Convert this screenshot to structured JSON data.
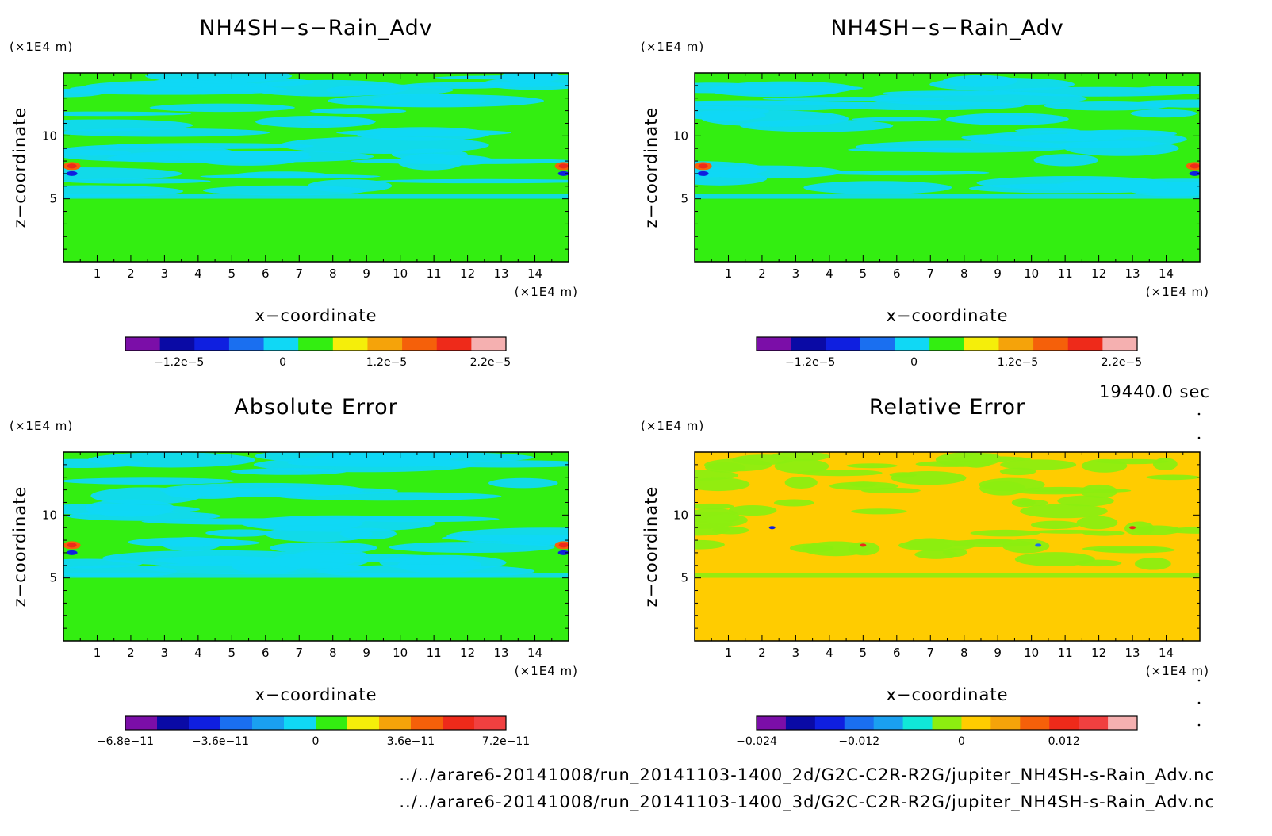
{
  "time_label": "19440.0 sec",
  "footer": {
    "line1": "../../arare6-20141008/run_20141103-1400_2d/G2C-C2R-R2G/jupiter_NH4SH-s-Rain_Adv.nc",
    "line2": "../../arare6-20141008/run_20141103-1400_3d/G2C-C2R-R2G/jupiter_NH4SH-s-Rain_Adv.nc"
  },
  "chart_data": [
    {
      "type": "heatmap",
      "title": "NH4SH−s−Rain_Adv",
      "xlabel": "x−coordinate",
      "ylabel": "z−coordinate",
      "x_unit": "(×1E4 m)",
      "y_unit": "(×1E4 m)",
      "xlim": [
        0,
        15
      ],
      "ylim": [
        0,
        15
      ],
      "x_ticks": [
        "1",
        "2",
        "3",
        "4",
        "5",
        "6",
        "7",
        "8",
        "9",
        "10",
        "11",
        "12",
        "13",
        "14"
      ],
      "y_ticks": [
        "5",
        "10"
      ],
      "background_color": "#33ee11",
      "features": "cyan (slightly negative) filaments between z=5 and z=15, strong red/blue extrema at the x boundaries near z=7.5",
      "colorbar": {
        "colors": [
          "#7b0ea8",
          "#0a0aa5",
          "#0f1fe0",
          "#1a6ff0",
          "#10d8f5",
          "#33ee11",
          "#f5ee0a",
          "#f5a30a",
          "#f5600a",
          "#ee2a1a",
          "#f5b0b0"
        ],
        "tick_labels": [
          "−1.2e−5",
          "0",
          "1.2e−5",
          "2.2e−5"
        ]
      }
    },
    {
      "type": "heatmap",
      "title": "NH4SH−s−Rain_Adv",
      "xlabel": "x−coordinate",
      "ylabel": "z−coordinate",
      "x_unit": "(×1E4 m)",
      "y_unit": "(×1E4 m)",
      "xlim": [
        0,
        15
      ],
      "ylim": [
        0,
        15
      ],
      "x_ticks": [
        "1",
        "2",
        "3",
        "4",
        "5",
        "6",
        "7",
        "8",
        "9",
        "10",
        "11",
        "12",
        "13",
        "14"
      ],
      "y_ticks": [
        "5",
        "10"
      ],
      "background_color": "#33ee11",
      "features": "nearly identical to the 2d run field",
      "colorbar": {
        "colors": [
          "#7b0ea8",
          "#0a0aa5",
          "#0f1fe0",
          "#1a6ff0",
          "#10d8f5",
          "#33ee11",
          "#f5ee0a",
          "#f5a30a",
          "#f5600a",
          "#ee2a1a",
          "#f5b0b0"
        ],
        "tick_labels": [
          "−1.2e−5",
          "0",
          "1.2e−5",
          "2.2e−5"
        ]
      }
    },
    {
      "type": "heatmap",
      "title": "Absolute Error",
      "xlabel": "x−coordinate",
      "ylabel": "z−coordinate",
      "x_unit": "(×1E4 m)",
      "y_unit": "(×1E4 m)",
      "xlim": [
        0,
        15
      ],
      "ylim": [
        0,
        15
      ],
      "x_ticks": [
        "1",
        "2",
        "3",
        "4",
        "5",
        "6",
        "7",
        "8",
        "9",
        "10",
        "11",
        "12",
        "13",
        "14"
      ],
      "y_ticks": [
        "5",
        "10"
      ],
      "background_color": "#33ee11",
      "features": "cyan filaments above z=5, extrema at x boundaries near z=7.5",
      "colorbar": {
        "colors": [
          "#7b0ea8",
          "#0a0aa5",
          "#0f1fe0",
          "#1a6ff0",
          "#1aa0f0",
          "#10d8f5",
          "#33ee11",
          "#f5ee0a",
          "#f5a30a",
          "#f5600a",
          "#ee2a1a",
          "#f04040"
        ],
        "tick_labels": [
          "−6.8e−11",
          "−3.6e−11",
          "0",
          "3.6e−11",
          "7.2e−11"
        ]
      }
    },
    {
      "type": "heatmap",
      "title": "Relative Error",
      "xlabel": "x−coordinate",
      "ylabel": "z−coordinate",
      "x_unit": "(×1E4 m)",
      "y_unit": "(×1E4 m)",
      "xlim": [
        0,
        15
      ],
      "ylim": [
        0,
        15
      ],
      "x_ticks": [
        "1",
        "2",
        "3",
        "4",
        "5",
        "6",
        "7",
        "8",
        "9",
        "10",
        "11",
        "12",
        "13",
        "14"
      ],
      "y_ticks": [
        "5",
        "10"
      ],
      "background_color": "#ffcc00",
      "features": "yellow-green patches above z=5, a few small blue/red spots",
      "colorbar": {
        "colors": [
          "#7b0ea8",
          "#0a0aa5",
          "#0f1fe0",
          "#1a6ff0",
          "#1aa0f0",
          "#10e8d8",
          "#8cee10",
          "#ffcc00",
          "#f5a30a",
          "#f5600a",
          "#ee2a1a",
          "#f04040",
          "#f5b0b0"
        ],
        "tick_labels": [
          "−0.024",
          "−0.012",
          "0",
          "0.012"
        ]
      }
    }
  ]
}
